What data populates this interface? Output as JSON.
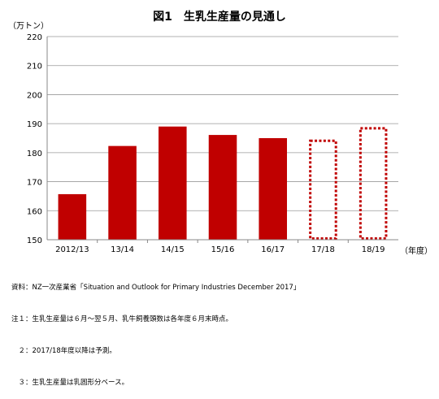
{
  "chart_data": {
    "type": "bar",
    "title": "図1　生乳生産量の見通し",
    "ylabel": "（万トン）",
    "xlabel": "（年度）",
    "categories": [
      "2012/13",
      "13/14",
      "14/15",
      "15/16",
      "16/17",
      "17/18",
      "18/19"
    ],
    "values": [
      165.7,
      182.3,
      189.0,
      186.1,
      185.0,
      184.5,
      188.8
    ],
    "forecast": [
      false,
      false,
      false,
      false,
      false,
      true,
      true
    ],
    "ylim": [
      150,
      220
    ],
    "yticks": [
      "150",
      "160",
      "170",
      "180",
      "190",
      "200",
      "210",
      "220"
    ],
    "grid": true,
    "colors": {
      "bar": "#c00000",
      "grid": "#999999",
      "axis": "#888888"
    }
  },
  "notes": [
    "資料：NZ一次産業省「Situation and Outlook for Primary Industries December 2017」",
    "注１：生乳生産量は６月～翌５月、乳牛飼養頭数は各年度６月末時点。",
    "　２：2017/18年度以降は予測。",
    "　３：生乳生産量は乳固形分ベース。"
  ]
}
